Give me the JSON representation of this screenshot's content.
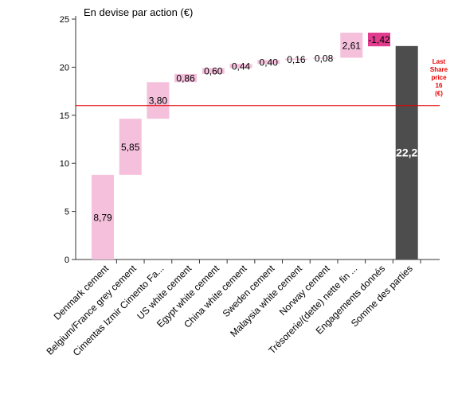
{
  "chart_data": {
    "type": "bar",
    "title": "En devise par action (€)",
    "ylim": [
      0,
      25
    ],
    "yticks": [
      0,
      5,
      10,
      15,
      20,
      25
    ],
    "grid": false,
    "categories": [
      "Denmark cement",
      "Belgium/France grey cement",
      "Cimentas Izmir Cimento Fa...",
      "US white cement",
      "Egypt white cement",
      "China white cement",
      "Sweden cement",
      "Malaysia white cement",
      "Norway cement",
      "Trésorerie/(dette) nette fin ...",
      "Engagements donnés",
      "Somme des parties"
    ],
    "values": [
      8.79,
      5.85,
      3.8,
      0.86,
      0.6,
      0.44,
      0.4,
      0.16,
      0.08,
      2.61,
      -1.42,
      22.2
    ],
    "value_labels": [
      "8,79",
      "5,85",
      "3,80",
      "0,86",
      "0,60",
      "0,44",
      "0,40",
      "0,16",
      "0,08",
      "2,61",
      "-1,42",
      "22,2"
    ],
    "bases": [
      0,
      8.79,
      14.64,
      18.44,
      19.3,
      19.9,
      20.34,
      20.74,
      20.9,
      20.98,
      23.59,
      0
    ],
    "kinds": [
      "pos",
      "pos",
      "pos",
      "pos",
      "pos",
      "pos",
      "pos",
      "pos",
      "pos",
      "pos",
      "neg",
      "total"
    ],
    "reference_line": {
      "value": 16,
      "label_lines": [
        "Last",
        "Share",
        "price",
        "16",
        "(€)"
      ]
    },
    "colors": {
      "pos": "#f5c0dc",
      "neg": "#e23c8f",
      "total": "#4d4d4d",
      "reference": "#e60000",
      "axis": "#333333",
      "label": "#000000",
      "total_label": "#ffffff"
    }
  }
}
